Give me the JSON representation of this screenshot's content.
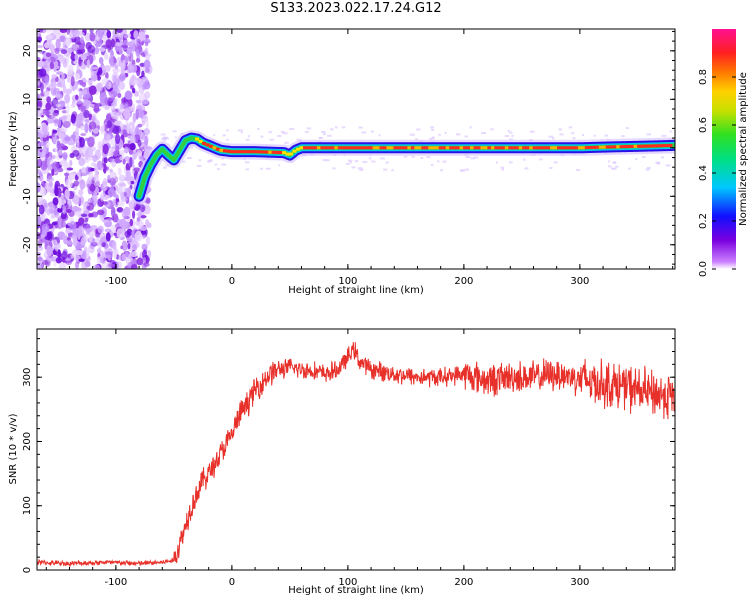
{
  "title": "S133.2023.022.17.24.G12",
  "colors": {
    "snr_line": "#e8302a",
    "noise_purple": "#8a2be2",
    "frame": "#000000"
  },
  "chart_data": [
    {
      "type": "heatmap",
      "xlabel": "Height of straight line (km)",
      "ylabel": "Frequency (Hz)",
      "xlim": [
        -168,
        382
      ],
      "ylim": [
        -25,
        24.5
      ],
      "xticks": [
        -100,
        0,
        100,
        200,
        300
      ],
      "yticks": [
        -20,
        -10,
        0,
        10,
        20
      ],
      "colorbar": {
        "label": "Normalized spectral amplitude",
        "range": [
          0.0,
          1.0
        ],
        "ticks": [
          "0.0",
          "0.2",
          "0.4",
          "0.6",
          "0.8"
        ],
        "colormap": "rainbow (white-purple-blue-cyan-green-yellow-orange-red-magenta)"
      },
      "noise_region": {
        "x_range": [
          -168,
          -78
        ],
        "description_level": "low amplitude scattered purple"
      },
      "signal_trace": {
        "x": [
          -80,
          -75,
          -70,
          -65,
          -60,
          -55,
          -50,
          -45,
          -40,
          -35,
          -30,
          -25,
          -20,
          -10,
          0,
          20,
          45,
          50,
          55,
          60,
          100,
          150,
          200,
          250,
          300,
          330,
          350,
          382
        ],
        "frequency": [
          -10,
          -6,
          -3.5,
          -1.5,
          -0.3,
          -1.5,
          -2.5,
          -0.5,
          1.5,
          2,
          1.8,
          1,
          0.5,
          -0.5,
          -0.8,
          -0.8,
          -1,
          -1.5,
          -0.5,
          0,
          0,
          0,
          0,
          0,
          0,
          0.2,
          0.3,
          0.5
        ]
      }
    },
    {
      "type": "line",
      "xlabel": "Height of straight line (km)",
      "ylabel": "SNR (10 * v/v)",
      "xlim": [
        -168,
        382
      ],
      "ylim": [
        0,
        375
      ],
      "xticks": [
        -100,
        0,
        100,
        200,
        300
      ],
      "yticks": [
        0,
        100,
        200,
        300
      ],
      "series": [
        {
          "x": [
            -168,
            -140,
            -110,
            -80,
            -60,
            -50,
            -45,
            -40,
            -35,
            -30,
            -25,
            -20,
            -15,
            -10,
            -5,
            0,
            5,
            10,
            15,
            20,
            25,
            30,
            35,
            40,
            50,
            60,
            70,
            80,
            90,
            100,
            105,
            110,
            115,
            120,
            140,
            160,
            180,
            200,
            220,
            240,
            260,
            280,
            300,
            320,
            340,
            360,
            382
          ],
          "y": [
            12,
            10,
            12,
            10,
            12,
            15,
            40,
            70,
            100,
            120,
            140,
            150,
            165,
            180,
            195,
            210,
            235,
            250,
            265,
            280,
            290,
            300,
            308,
            312,
            315,
            312,
            310,
            305,
            310,
            330,
            345,
            325,
            318,
            312,
            305,
            300,
            300,
            305,
            295,
            300,
            300,
            305,
            298,
            290,
            285,
            275,
            270
          ]
        }
      ]
    }
  ]
}
